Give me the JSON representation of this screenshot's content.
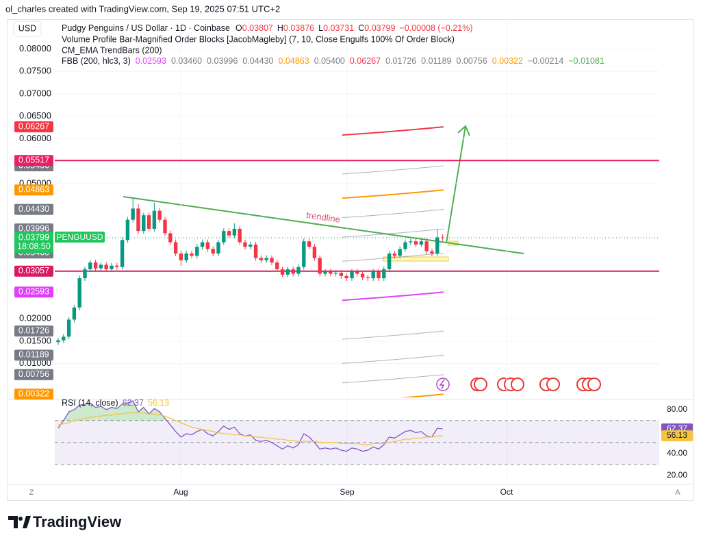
{
  "watermark": "ol_charles created with TradingView.com, Sep 19, 2025 07:51 UTC+2",
  "footer_logo": "TradingView",
  "buttons": {
    "timezone": "Z",
    "auto_scale": "A"
  },
  "chart_data": [
    {
      "type": "candlestick",
      "currency": "USD",
      "title": "Pudgy Penguins / US Dollar · 1D · Coinbase",
      "ohlc_letters": [
        "O",
        "H",
        "L",
        "C"
      ],
      "change": "−0.00008 (−0.21%)",
      "indicators": [
        "Volume Profile Bar-Magnified Order Blocks [JacobMagleby] (7, 10, Close Engulfs 100% Of Order Block)",
        "CM_EMA TrendBars (200)"
      ],
      "fbb_name": "FBB (200, hlc3, 3)",
      "fbb": [
        {
          "value": 0.02593,
          "color": "#e040fb"
        },
        {
          "value": 0.0346,
          "label": "0.03460",
          "color": "#787b86"
        },
        {
          "value": 0.03996,
          "color": "#787b86"
        },
        {
          "value": 0.0443,
          "label": "0.04430",
          "color": "#787b86"
        },
        {
          "value": 0.04863,
          "color": "#ff9800"
        },
        {
          "value": 0.054,
          "label": "0.05400",
          "color": "#787b86"
        },
        {
          "value": 0.06267,
          "color": "#f23645"
        },
        {
          "value": 0.01726,
          "color": "#787b86"
        },
        {
          "value": 0.01189,
          "color": "#787b86"
        },
        {
          "value": 0.00756,
          "color": "#787b86"
        },
        {
          "value": 0.00322,
          "color": "#ff9800"
        },
        {
          "value": -0.00214,
          "label": "−0.00214",
          "color": "#787b86"
        },
        {
          "value": -0.01081,
          "label": "−0.01081",
          "color": "#4caf50"
        }
      ],
      "horizontal_lines": [
        {
          "value": 0.05517,
          "color": "#e91e63"
        },
        {
          "value": 0.03057,
          "color": "#d81b60"
        }
      ],
      "symbol": "PENGUUSD",
      "countdown": "18:08:50",
      "annotation": "trendline",
      "x_labels": [
        "Aug",
        "Sep",
        "Oct"
      ],
      "up_color": "#089981",
      "down_color": "#f23645",
      "ylim": [
        0.0025,
        0.0866
      ],
      "yticks": [
        {
          "value": 0.08,
          "label": "0.08000"
        },
        {
          "value": 0.075,
          "label": "0.07500"
        },
        {
          "value": 0.07,
          "label": "0.07000"
        },
        {
          "value": 0.065,
          "label": "0.06500"
        },
        {
          "value": 0.06,
          "label": "0.06000"
        },
        {
          "value": 0.05,
          "label": "0.05000"
        },
        {
          "value": 0.02,
          "label": "0.02000"
        },
        {
          "value": 0.015,
          "label": "0.01500"
        },
        {
          "value": 0.01,
          "label": "0.01000"
        }
      ],
      "open": [
        0.0148,
        0.0152,
        0.016,
        0.0198,
        0.0225,
        0.029,
        0.031,
        0.0325,
        0.0312,
        0.032,
        0.031,
        0.0318,
        0.0315,
        0.0375,
        0.042,
        0.0445,
        0.0395,
        0.043,
        0.04,
        0.044,
        0.042,
        0.039,
        0.037,
        0.0345,
        0.033,
        0.0345,
        0.034,
        0.036,
        0.037,
        0.0355,
        0.0345,
        0.037,
        0.0395,
        0.0385,
        0.04,
        0.037,
        0.036,
        0.0365,
        0.0335,
        0.033,
        0.0335,
        0.0325,
        0.031,
        0.0298,
        0.031,
        0.03,
        0.0315,
        0.0372,
        0.036,
        0.0335,
        0.03,
        0.0305,
        0.03,
        0.0302,
        0.0295,
        0.029,
        0.0305,
        0.03,
        0.0292,
        0.029,
        0.0305,
        0.029,
        0.031,
        0.0345,
        0.034,
        0.0355,
        0.037,
        0.0372,
        0.0365,
        0.0372,
        0.035,
        0.0345,
        0.03807
      ],
      "high": [
        0.0158,
        0.0166,
        0.0204,
        0.0231,
        0.0296,
        0.0316,
        0.0331,
        0.0331,
        0.0326,
        0.0326,
        0.0324,
        0.0324,
        0.0381,
        0.0426,
        0.0468,
        0.0455,
        0.0436,
        0.0436,
        0.0458,
        0.0446,
        0.0426,
        0.0396,
        0.0376,
        0.0351,
        0.0351,
        0.0351,
        0.0366,
        0.0376,
        0.0376,
        0.0361,
        0.0376,
        0.0401,
        0.0401,
        0.0412,
        0.0406,
        0.0376,
        0.0371,
        0.0371,
        0.0341,
        0.0341,
        0.0341,
        0.0331,
        0.0316,
        0.0316,
        0.0316,
        0.0321,
        0.0378,
        0.0378,
        0.0366,
        0.0341,
        0.0311,
        0.0311,
        0.0308,
        0.0308,
        0.0301,
        0.0311,
        0.0311,
        0.0306,
        0.0298,
        0.0311,
        0.0311,
        0.0316,
        0.0351,
        0.0351,
        0.0361,
        0.0376,
        0.0378,
        0.0378,
        0.0378,
        0.0378,
        0.0356,
        0.0399,
        0.03876
      ],
      "low": [
        0.0142,
        0.0146,
        0.0154,
        0.0192,
        0.0219,
        0.0284,
        0.0304,
        0.0306,
        0.0306,
        0.0304,
        0.0304,
        0.0309,
        0.0309,
        0.0369,
        0.0414,
        0.0389,
        0.0389,
        0.0394,
        0.0394,
        0.0414,
        0.0384,
        0.0364,
        0.0339,
        0.0318,
        0.0324,
        0.0334,
        0.0334,
        0.0354,
        0.0349,
        0.0339,
        0.0339,
        0.0364,
        0.0379,
        0.0379,
        0.0364,
        0.0354,
        0.0354,
        0.0329,
        0.0324,
        0.0324,
        0.0319,
        0.0304,
        0.0292,
        0.0292,
        0.0294,
        0.0294,
        0.0309,
        0.0354,
        0.0329,
        0.0294,
        0.0294,
        0.0294,
        0.0294,
        0.0289,
        0.0284,
        0.0284,
        0.0294,
        0.0286,
        0.0284,
        0.0284,
        0.0284,
        0.0284,
        0.0304,
        0.0334,
        0.0334,
        0.0349,
        0.0364,
        0.0359,
        0.0359,
        0.0344,
        0.0339,
        0.0339,
        0.03731
      ],
      "close": [
        0.0152,
        0.016,
        0.0198,
        0.0225,
        0.029,
        0.031,
        0.0325,
        0.0312,
        0.032,
        0.031,
        0.0318,
        0.0315,
        0.0375,
        0.042,
        0.0445,
        0.0395,
        0.043,
        0.04,
        0.044,
        0.042,
        0.039,
        0.037,
        0.0345,
        0.033,
        0.0345,
        0.034,
        0.036,
        0.037,
        0.0355,
        0.0345,
        0.037,
        0.0395,
        0.0385,
        0.04,
        0.037,
        0.036,
        0.0365,
        0.0335,
        0.033,
        0.0335,
        0.0325,
        0.031,
        0.0298,
        0.031,
        0.03,
        0.0315,
        0.0372,
        0.036,
        0.0335,
        0.03,
        0.0305,
        0.03,
        0.0302,
        0.0295,
        0.029,
        0.0305,
        0.03,
        0.0292,
        0.029,
        0.0305,
        0.029,
        0.031,
        0.0345,
        0.034,
        0.0355,
        0.037,
        0.0372,
        0.0365,
        0.0372,
        0.035,
        0.0345,
        0.0381,
        0.03799
      ]
    },
    {
      "type": "line",
      "title": "RSI (14, close)",
      "ylim": [
        13,
        88
      ],
      "yticks": [
        {
          "value": 80,
          "label": "80.00"
        },
        {
          "value": 40,
          "label": "40.00"
        },
        {
          "value": 20,
          "label": "20.00"
        }
      ],
      "levels": [
        70,
        50,
        30
      ],
      "series": [
        {
          "color": "#7e57c2",
          "values": [
            63,
            70,
            78,
            80,
            84,
            85,
            86,
            82,
            83,
            80,
            82,
            81,
            85,
            86,
            88,
            78,
            82,
            76,
            81,
            78,
            72,
            66,
            60,
            55,
            58,
            57,
            60,
            62,
            58,
            56,
            60,
            65,
            62,
            64,
            58,
            56,
            57,
            52,
            51,
            52,
            50,
            47,
            44,
            47,
            45,
            48,
            58,
            55,
            50,
            44,
            45,
            44,
            45,
            43,
            42,
            45,
            44,
            42,
            43,
            46,
            44,
            48,
            55,
            54,
            57,
            60,
            61,
            59,
            60,
            56,
            55,
            63,
            62.37
          ]
        },
        {
          "color": "#f5c342",
          "values": [
            66,
            67,
            68,
            70,
            71,
            72,
            73,
            74,
            74,
            75,
            75,
            76,
            76,
            77,
            77,
            77,
            77,
            76,
            76,
            75,
            74,
            72,
            70,
            68,
            66,
            64,
            63,
            62,
            61,
            60,
            59,
            58,
            58,
            57,
            57,
            56,
            56,
            55,
            55,
            54,
            54,
            53,
            53,
            52,
            52,
            51,
            51,
            51,
            51,
            50,
            50,
            50,
            50,
            49,
            49,
            49,
            49,
            48,
            48,
            49,
            49,
            49,
            50,
            51,
            52,
            53,
            53,
            54,
            54,
            55,
            55,
            56,
            56.13
          ]
        }
      ]
    }
  ]
}
